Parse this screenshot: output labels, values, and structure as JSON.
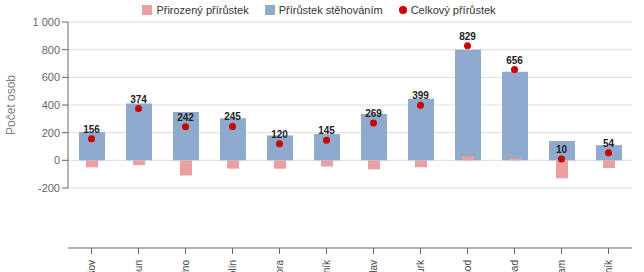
{
  "chart_data": {
    "type": "bar",
    "categories": [
      "Benešov",
      "Beroun",
      "Kladno",
      "Kolín",
      "Kutná Hora",
      "Mělník",
      "Mladá Boleslav",
      "Nymburk",
      "Praha-východ",
      "Praha-západ",
      "Příbram",
      "Rakovník"
    ],
    "series": [
      {
        "name": "Přirozený přírůstek",
        "color": "#e8a0a0",
        "values": [
          -50,
          -35,
          -110,
          -60,
          -60,
          -45,
          -65,
          -50,
          30,
          15,
          -130,
          -55
        ]
      },
      {
        "name": "Přírůstek stěhováním",
        "color": "#8faacc",
        "values": [
          205,
          410,
          350,
          305,
          180,
          190,
          335,
          445,
          800,
          640,
          140,
          110
        ]
      },
      {
        "name": "Celkový přírůstek",
        "type": "scatter",
        "color": "#cc0000",
        "data_labels": true,
        "values": [
          156,
          374,
          242,
          245,
          120,
          145,
          269,
          399,
          829,
          656,
          10,
          54
        ]
      }
    ],
    "ylabel": "Počet osob",
    "ylim": [
      -200,
      1000
    ],
    "yticks": [
      -200,
      0,
      200,
      400,
      600,
      800,
      {
        "value": 1000,
        "label": "1 000"
      }
    ],
    "grid": true
  }
}
